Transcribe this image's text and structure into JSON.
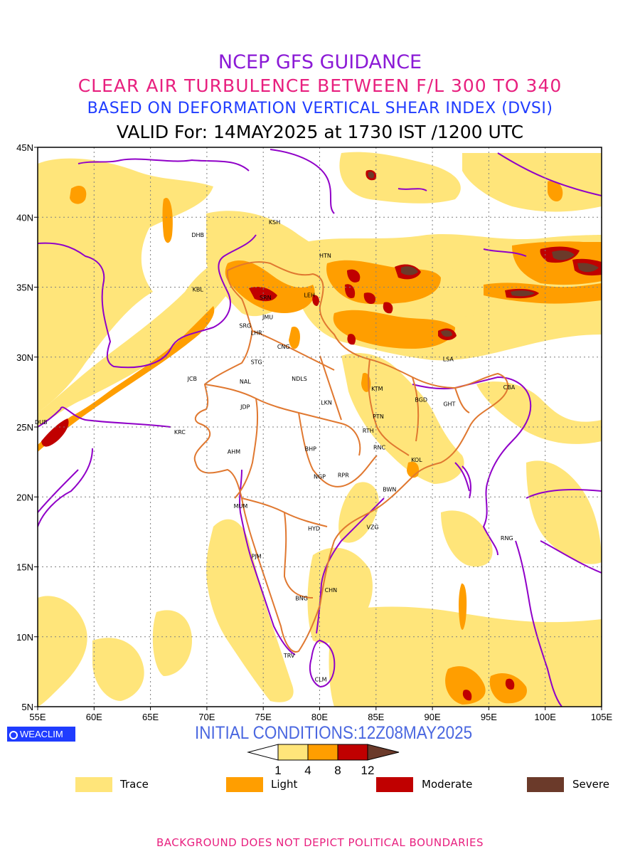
{
  "titles": {
    "line1": "NCEP GFS GUIDANCE",
    "line2": "CLEAR AIR TURBULENCE BETWEEN F/L 300 TO 340",
    "line3": "BASED ON DEFORMATION VERTICAL SHEAR INDEX (DVSI)",
    "line4": "VALID For: 14MAY2025 at 1730 IST /1200 UTC"
  },
  "colors": {
    "line1": "#8b1ad6",
    "line2": "#e8207f",
    "line3": "#1f3cff",
    "line4": "#000000",
    "trace": "#ffe57a",
    "light": "#ff9e00",
    "moderate": "#c00000",
    "severe": "#6b3a2a",
    "borders": "#9000c8",
    "india": "#e07830",
    "init": "#4a67e0",
    "footer": "#e8207f"
  },
  "axes": {
    "lon_labels": [
      "55E",
      "60E",
      "65E",
      "70E",
      "75E",
      "80E",
      "85E",
      "90E",
      "95E",
      "100E",
      "105E"
    ],
    "lat_labels": [
      "5N",
      "10N",
      "15N",
      "20N",
      "25N",
      "30N",
      "35N",
      "40N",
      "45N"
    ],
    "lon_range": [
      55,
      105
    ],
    "lat_range": [
      5,
      45
    ]
  },
  "cities": [
    {
      "code": "KSH",
      "lon": 76.0,
      "lat": 39.5
    },
    {
      "code": "DHB",
      "lon": 69.2,
      "lat": 38.6
    },
    {
      "code": "HTN",
      "lon": 80.5,
      "lat": 37.1
    },
    {
      "code": "KBL",
      "lon": 69.2,
      "lat": 34.7
    },
    {
      "code": "SRN",
      "lon": 75.2,
      "lat": 34.1
    },
    {
      "code": "LEH",
      "lon": 79.1,
      "lat": 34.3
    },
    {
      "code": "JMU",
      "lon": 75.4,
      "lat": 32.7
    },
    {
      "code": "SRG",
      "lon": 73.4,
      "lat": 32.1
    },
    {
      "code": "LHR",
      "lon": 74.4,
      "lat": 31.6
    },
    {
      "code": "CNG",
      "lon": 76.8,
      "lat": 30.6
    },
    {
      "code": "LSA",
      "lon": 91.4,
      "lat": 29.7
    },
    {
      "code": "STG",
      "lon": 74.4,
      "lat": 29.5
    },
    {
      "code": "JCB",
      "lon": 68.7,
      "lat": 28.3
    },
    {
      "code": "NAL",
      "lon": 73.4,
      "lat": 28.1
    },
    {
      "code": "NDLS",
      "lon": 78.2,
      "lat": 28.3
    },
    {
      "code": "KTM",
      "lon": 85.1,
      "lat": 27.6
    },
    {
      "code": "CBA",
      "lon": 96.8,
      "lat": 27.7
    },
    {
      "code": "BGD",
      "lon": 89.0,
      "lat": 26.8
    },
    {
      "code": "GHT",
      "lon": 91.5,
      "lat": 26.5
    },
    {
      "code": "JDP",
      "lon": 73.4,
      "lat": 26.3
    },
    {
      "code": "LKN",
      "lon": 80.6,
      "lat": 26.6
    },
    {
      "code": "PTN",
      "lon": 85.2,
      "lat": 25.6
    },
    {
      "code": "DUB",
      "lon": 55.3,
      "lat": 25.2
    },
    {
      "code": "RTH",
      "lon": 84.3,
      "lat": 24.6
    },
    {
      "code": "KRC",
      "lon": 67.6,
      "lat": 24.5
    },
    {
      "code": "BHP",
      "lon": 79.2,
      "lat": 23.3
    },
    {
      "code": "AHM",
      "lon": 72.4,
      "lat": 23.1
    },
    {
      "code": "RNC",
      "lon": 85.3,
      "lat": 23.4
    },
    {
      "code": "KOL",
      "lon": 88.6,
      "lat": 22.5
    },
    {
      "code": "NGP",
      "lon": 80.0,
      "lat": 21.3
    },
    {
      "code": "RPR",
      "lon": 82.1,
      "lat": 21.4
    },
    {
      "code": "BWN",
      "lon": 86.2,
      "lat": 20.4
    },
    {
      "code": "MUM",
      "lon": 73.0,
      "lat": 19.2
    },
    {
      "code": "HYD",
      "lon": 79.5,
      "lat": 17.6
    },
    {
      "code": "VZG",
      "lon": 84.7,
      "lat": 17.7
    },
    {
      "code": "RNG",
      "lon": 96.6,
      "lat": 16.9
    },
    {
      "code": "PJM",
      "lon": 74.4,
      "lat": 15.6
    },
    {
      "code": "CHN",
      "lon": 81.0,
      "lat": 13.2
    },
    {
      "code": "BNG",
      "lon": 78.4,
      "lat": 12.6
    },
    {
      "code": "TRV",
      "lon": 77.3,
      "lat": 8.5
    },
    {
      "code": "CLM",
      "lon": 80.1,
      "lat": 6.8
    }
  ],
  "logo": {
    "text": "WEACLIM",
    "icon": "globe-icon"
  },
  "init_conditions": "INITIAL CONDITIONS:12Z08MAY2025",
  "colorbar": {
    "ticks": [
      "1",
      "4",
      "8",
      "12"
    ]
  },
  "legend": [
    {
      "label": "Trace",
      "color": "#ffe57a"
    },
    {
      "label": "Light",
      "color": "#ff9e00"
    },
    {
      "label": "Moderate",
      "color": "#c00000"
    },
    {
      "label": "Severe",
      "color": "#6b3a2a"
    }
  ],
  "footer": "BACKGROUND DOES NOT DEPICT POLITICAL BOUNDARIES"
}
